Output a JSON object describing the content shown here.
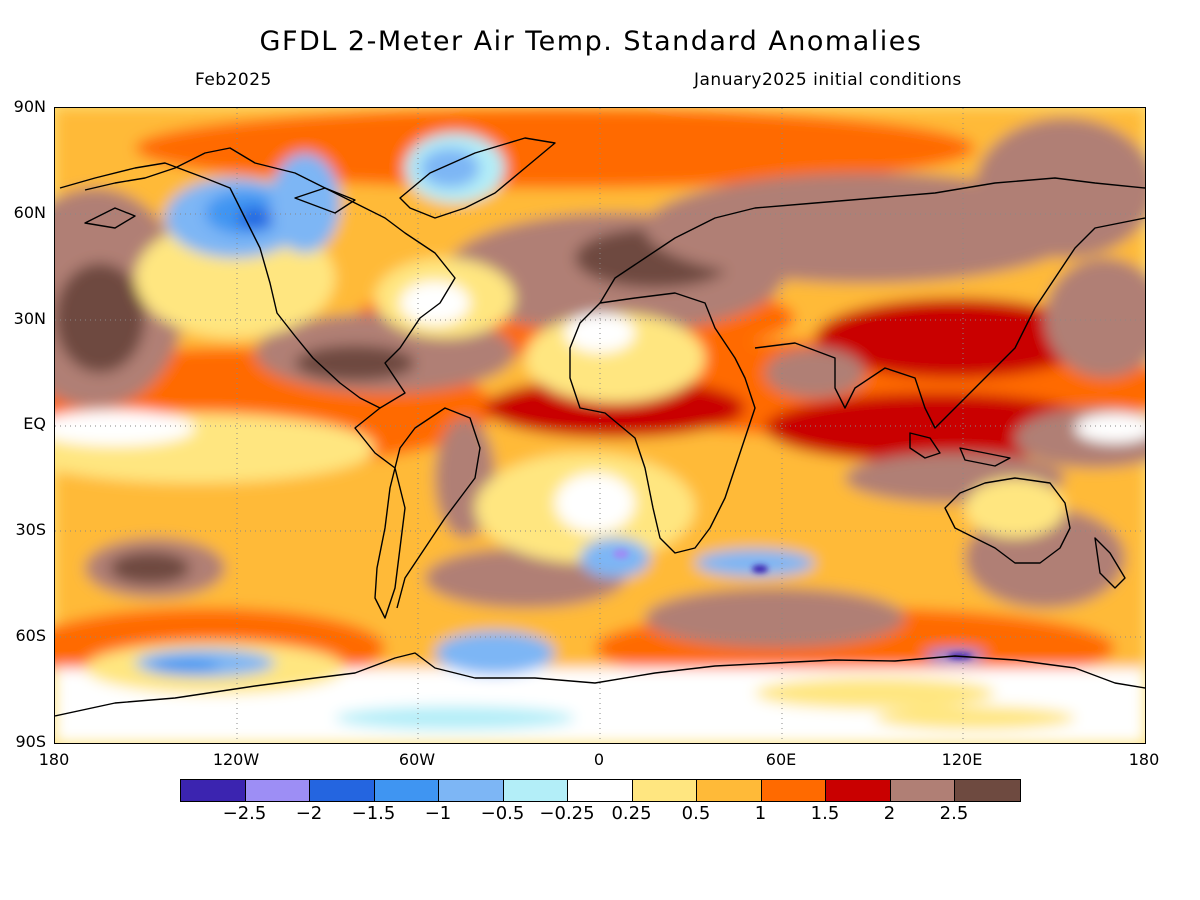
{
  "title": "GFDL 2-Meter Air Temp. Standard Anomalies",
  "subtitle_left": "Feb2025",
  "subtitle_right": "January2025 initial conditions",
  "lat_labels": [
    "90N",
    "60N",
    "30N",
    "EQ",
    "30S",
    "60S",
    "90S"
  ],
  "lon_labels": [
    "180",
    "120W",
    "60W",
    "0",
    "60E",
    "120E",
    "180"
  ],
  "colorbar": {
    "colors": [
      "#3b24b0",
      "#9d8ef5",
      "#2465e0",
      "#3f95f2",
      "#7db6f5",
      "#b3eef8",
      "#ffffff",
      "#ffe680",
      "#ffba38",
      "#ff6a00",
      "#c90000",
      "#b07f75",
      "#6e4a40"
    ],
    "labels": [
      "-2.5",
      "-2",
      "-1.5",
      "-1",
      "-0.5",
      "-0.25",
      "0.25",
      "0.5",
      "1",
      "1.5",
      "2",
      "2.5"
    ]
  },
  "chart_data": {
    "type": "heatmap",
    "title": "GFDL 2-Meter Air Temp. Standard Anomalies",
    "valid_month": "Feb2025",
    "initial_conditions": "January2025 initial conditions",
    "x_range": [
      -180,
      180
    ],
    "y_range": [
      -90,
      90
    ],
    "contour_levels": [
      -2.5,
      -2,
      -1.5,
      -1,
      -0.5,
      -0.25,
      0.25,
      0.5,
      1,
      1.5,
      2,
      2.5
    ]
  }
}
